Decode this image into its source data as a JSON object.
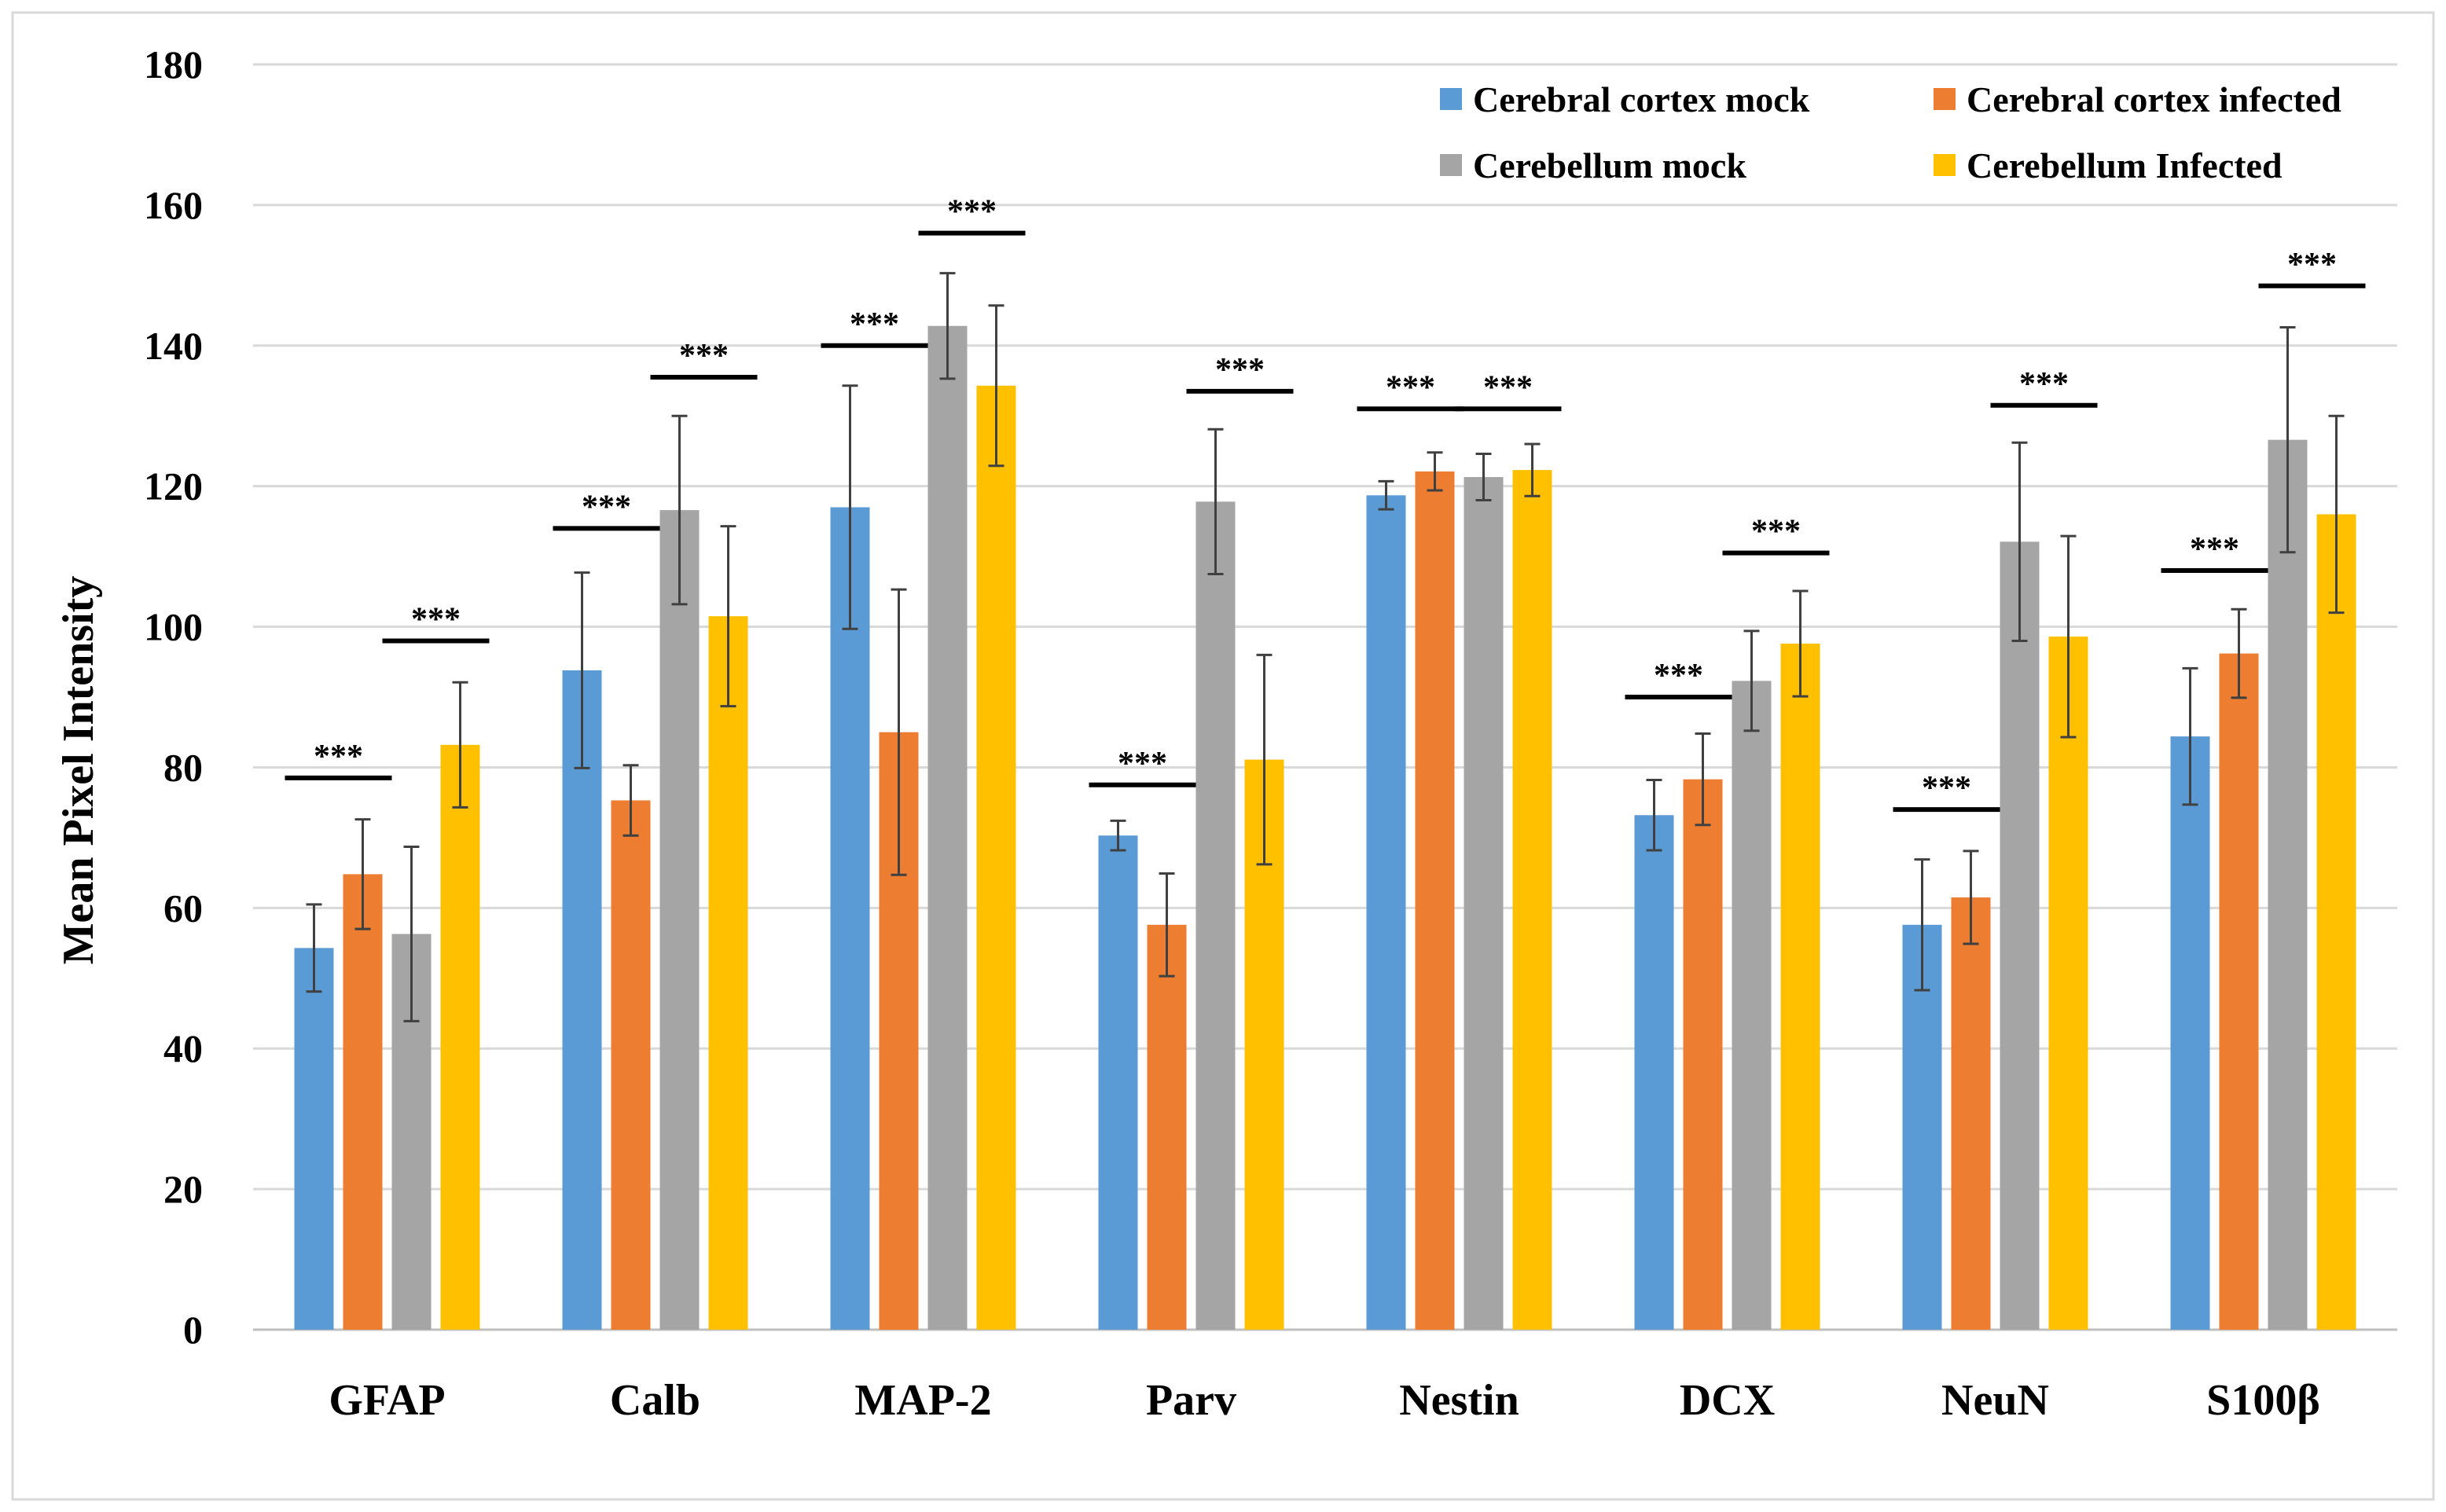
{
  "chart_data": {
    "type": "bar",
    "title": "",
    "xlabel": "",
    "ylabel": "Mean Pixel Intensity",
    "ylim": [
      0,
      180
    ],
    "yticks": [
      0,
      20,
      40,
      60,
      80,
      100,
      120,
      140,
      160,
      180
    ],
    "grid": true,
    "legend_position": "top-right",
    "categories": [
      "GFAP",
      "Calb",
      "MAP-2",
      "Parv",
      "Nestin",
      "DCX",
      "NeuN",
      "S100β"
    ],
    "series": [
      {
        "name": "Cerebral cortex mock",
        "color": "#5B9BD5",
        "values": [
          54.3,
          93.8,
          117.0,
          70.3,
          118.7,
          73.2,
          57.6,
          84.4
        ],
        "errors": [
          6.2,
          13.9,
          17.3,
          2.1,
          2.0,
          5.0,
          9.3,
          9.7
        ]
      },
      {
        "name": "Cerebral cortex infected",
        "color": "#ED7D31",
        "values": [
          64.8,
          75.3,
          85.0,
          57.6,
          122.1,
          78.3,
          61.5,
          96.2
        ],
        "errors": [
          7.8,
          5.0,
          20.3,
          7.3,
          2.7,
          6.5,
          6.6,
          6.3
        ]
      },
      {
        "name": "Cerebellum mock",
        "color": "#A5A5A5",
        "values": [
          56.3,
          116.6,
          142.8,
          117.8,
          121.3,
          92.3,
          112.1,
          126.6
        ],
        "errors": [
          12.4,
          13.4,
          7.5,
          10.3,
          3.3,
          7.1,
          14.1,
          16.0
        ]
      },
      {
        "name": "Cerebellum Infected",
        "color": "#FFC000",
        "values": [
          83.2,
          101.5,
          134.3,
          81.1,
          122.3,
          97.6,
          98.6,
          116.0
        ],
        "errors": [
          8.9,
          12.8,
          11.4,
          14.9,
          3.7,
          7.5,
          14.3,
          14.0
        ]
      }
    ],
    "significance": [
      {
        "category": 0,
        "from_series": 0,
        "to_series": 1,
        "y": 78.5,
        "label": "***"
      },
      {
        "category": 0,
        "from_series": 2,
        "to_series": 3,
        "y": 98.0,
        "label": "***"
      },
      {
        "category": 1,
        "from_series": 0,
        "to_series": 1,
        "y": 114.0,
        "label": "***"
      },
      {
        "category": 1,
        "from_series": 2,
        "to_series": 3,
        "y": 135.5,
        "label": "***"
      },
      {
        "category": 2,
        "from_series": 0,
        "to_series": 1,
        "y": 140.0,
        "label": "***"
      },
      {
        "category": 2,
        "from_series": 2,
        "to_series": 3,
        "y": 156.0,
        "label": "***"
      },
      {
        "category": 3,
        "from_series": 0,
        "to_series": 1,
        "y": 77.5,
        "label": "***"
      },
      {
        "category": 3,
        "from_series": 2,
        "to_series": 3,
        "y": 133.5,
        "label": "***"
      },
      {
        "category": 4,
        "from_series": 0,
        "to_series": 1,
        "y": 131.0,
        "label": "***"
      },
      {
        "category": 4,
        "from_series": 2,
        "to_series": 3,
        "y": 131.0,
        "label": "***"
      },
      {
        "category": 5,
        "from_series": 0,
        "to_series": 1,
        "y": 90.0,
        "label": "***"
      },
      {
        "category": 5,
        "from_series": 2,
        "to_series": 3,
        "y": 110.5,
        "label": "***"
      },
      {
        "category": 6,
        "from_series": 0,
        "to_series": 1,
        "y": 74.0,
        "label": "***"
      },
      {
        "category": 6,
        "from_series": 2,
        "to_series": 3,
        "y": 131.5,
        "label": "***"
      },
      {
        "category": 7,
        "from_series": 0,
        "to_series": 1,
        "y": 108.0,
        "label": "***"
      },
      {
        "category": 7,
        "from_series": 2,
        "to_series": 3,
        "y": 148.5,
        "label": "***"
      }
    ]
  }
}
